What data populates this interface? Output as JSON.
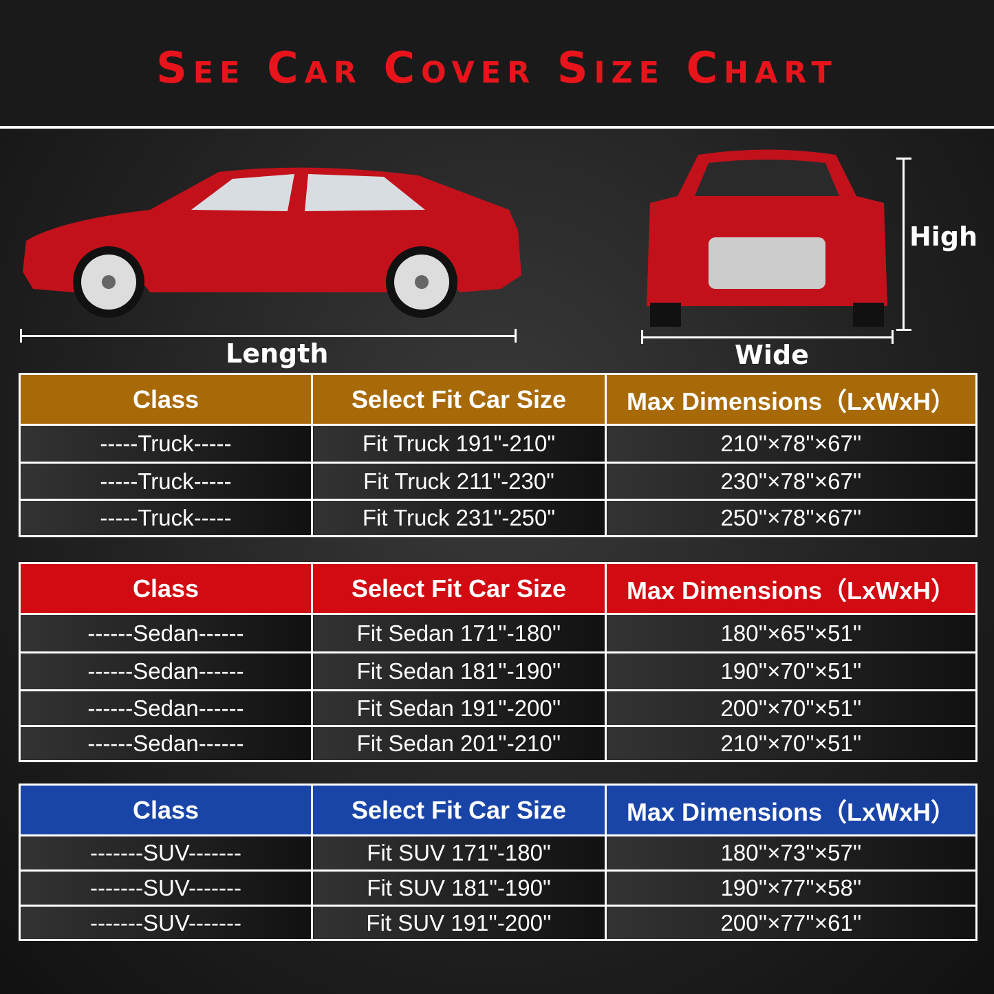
{
  "title": "See Car Cover Size Chart",
  "labels": {
    "length": "Length",
    "wide": "Wide",
    "high": "High"
  },
  "tables": [
    {
      "header_color": "#a86a08",
      "headers": [
        "Class",
        "Select Fit Car Size",
        "Max Dimensions（LxWxH）"
      ],
      "rows": [
        [
          "-----Truck-----",
          "Fit Truck 191\"-210\"",
          "210''×78''×67''"
        ],
        [
          "-----Truck-----",
          "Fit Truck 211\"-230\"",
          "230''×78''×67''"
        ],
        [
          "-----Truck-----",
          "Fit Truck 231\"-250\"",
          "250''×78''×67''"
        ]
      ]
    },
    {
      "header_color": "#d20a11",
      "headers": [
        "Class",
        "Select Fit Car Size",
        "Max Dimensions（LxWxH）"
      ],
      "rows": [
        [
          "------Sedan------",
          "Fit Sedan 171''-180''",
          "180''×65''×51''"
        ],
        [
          "------Sedan------",
          "Fit Sedan 181''-190''",
          "190''×70''×51''"
        ],
        [
          "------Sedan------",
          "Fit Sedan 191''-200''",
          "200''×70''×51''"
        ],
        [
          "------Sedan------",
          "Fit Sedan 201''-210''",
          "210''×70''×51''"
        ]
      ]
    },
    {
      "header_color": "#1a45a8",
      "headers": [
        "Class",
        "Select Fit Car Size",
        "Max Dimensions（LxWxH）"
      ],
      "rows": [
        [
          "-------SUV-------",
          "Fit SUV 171\"-180\"",
          "180''×73''×57''"
        ],
        [
          "-------SUV-------",
          "Fit SUV 181\"-190\"",
          "190''×77''×58''"
        ],
        [
          "-------SUV-------",
          "Fit SUV 191''-200''",
          "200''×77''×61''"
        ]
      ]
    }
  ]
}
